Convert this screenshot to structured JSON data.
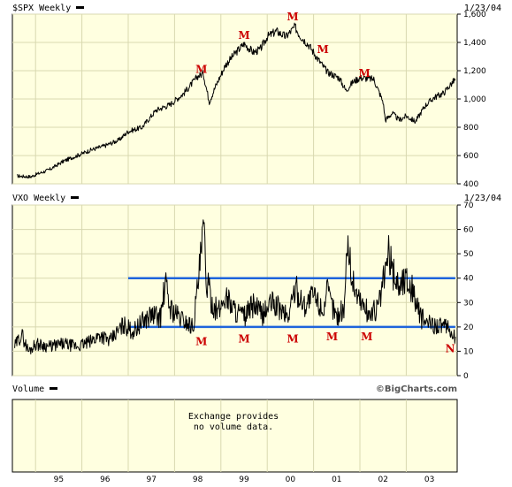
{
  "chart_data": [
    {
      "type": "line",
      "panel": "spx",
      "title": "$SPX Weekly",
      "date": "1/23/04",
      "ylim": [
        400,
        1600
      ],
      "yticks": [
        400,
        600,
        800,
        1000,
        1200,
        1400,
        1600
      ],
      "ytick_labels": [
        "400",
        "600",
        "800",
        "1,000",
        "1,200",
        "1,400",
        "1,600"
      ],
      "xlim": [
        1994.5,
        2004.1
      ],
      "grid": true,
      "series": [
        {
          "x": [
            1994.6,
            1994.9,
            1995.0,
            1995.3,
            1995.6,
            1995.9,
            1996.2,
            1996.5,
            1996.8,
            1997.0,
            1997.3,
            1997.6,
            1997.9,
            1998.2,
            1998.5,
            1998.62,
            1998.75,
            1998.9,
            1999.1,
            1999.3,
            1999.5,
            1999.7,
            1999.85,
            2000.0,
            2000.2,
            2000.4,
            2000.6,
            2000.7,
            2000.9,
            2001.1,
            2001.3,
            2001.55,
            2001.7,
            2001.85,
            2002.0,
            2002.3,
            2002.5,
            2002.55,
            2002.7,
            2002.85,
            2003.0,
            2003.2,
            2003.4,
            2003.6,
            2003.8,
            2004.06
          ],
          "y": [
            455,
            450,
            465,
            500,
            560,
            600,
            640,
            670,
            710,
            770,
            800,
            920,
            960,
            1040,
            1160,
            1180,
            980,
            1100,
            1240,
            1320,
            1390,
            1330,
            1350,
            1440,
            1480,
            1440,
            1510,
            1450,
            1380,
            1280,
            1190,
            1150,
            1060,
            1120,
            1150,
            1140,
            980,
            850,
            900,
            850,
            880,
            840,
            950,
            1010,
            1040,
            1140
          ]
        }
      ],
      "annotations": [
        {
          "text": "M",
          "x": 1998.58,
          "y": 1210
        },
        {
          "text": "M",
          "x": 1999.5,
          "y": 1450
        },
        {
          "text": "M",
          "x": 2000.55,
          "y": 1580
        },
        {
          "text": "M",
          "x": 2001.2,
          "y": 1350
        },
        {
          "text": "M",
          "x": 2002.1,
          "y": 1180
        }
      ]
    },
    {
      "type": "line",
      "panel": "vxo",
      "title": "VXO Weekly",
      "date": "1/23/04",
      "ylim": [
        0,
        70
      ],
      "yticks": [
        0,
        10,
        20,
        30,
        40,
        50,
        60,
        70
      ],
      "ytick_labels": [
        "0",
        "10",
        "20",
        "30",
        "40",
        "50",
        "60",
        "70"
      ],
      "xlim": [
        1994.5,
        2004.1
      ],
      "grid": true,
      "series": [
        {
          "x": [
            1994.55,
            1994.7,
            1994.85,
            1995.0,
            1995.3,
            1995.6,
            1995.9,
            1996.2,
            1996.4,
            1996.6,
            1996.9,
            1997.1,
            1997.3,
            1997.5,
            1997.7,
            1997.8,
            1997.9,
            1998.1,
            1998.4,
            1998.55,
            1998.63,
            1998.68,
            1998.8,
            1998.95,
            1999.1,
            1999.3,
            1999.5,
            1999.7,
            1999.9,
            2000.1,
            2000.3,
            2000.45,
            2000.6,
            2000.8,
            2001.0,
            2001.2,
            2001.3,
            2001.5,
            2001.68,
            2001.72,
            2001.85,
            2002.0,
            2002.2,
            2002.4,
            2002.55,
            2002.62,
            2002.72,
            2002.85,
            2003.0,
            2003.15,
            2003.3,
            2003.5,
            2003.7,
            2003.9,
            2004.06
          ],
          "y": [
            12,
            17,
            10,
            13,
            12,
            13,
            12,
            14,
            17,
            14,
            21,
            18,
            22,
            25,
            24,
            38,
            28,
            24,
            20,
            45,
            61,
            40,
            30,
            26,
            33,
            27,
            24,
            29,
            25,
            30,
            27,
            24,
            36,
            29,
            33,
            27,
            34,
            24,
            29,
            57,
            38,
            31,
            25,
            28,
            43,
            50,
            42,
            37,
            40,
            35,
            24,
            21,
            21,
            19,
            16
          ]
        }
      ],
      "reference_lines": [
        {
          "x0": 1997.0,
          "x1": 2004.06,
          "y": 40
        },
        {
          "x0": 1997.0,
          "x1": 2004.06,
          "y": 20
        }
      ],
      "annotations": [
        {
          "text": "M",
          "x": 1998.58,
          "y": 14
        },
        {
          "text": "M",
          "x": 1999.5,
          "y": 15
        },
        {
          "text": "M",
          "x": 2000.55,
          "y": 15
        },
        {
          "text": "M",
          "x": 2001.4,
          "y": 16
        },
        {
          "text": "M",
          "x": 2002.15,
          "y": 16
        },
        {
          "text": "N",
          "x": 2003.95,
          "y": 11
        }
      ]
    },
    {
      "type": "bar",
      "panel": "volume",
      "title": "Volume",
      "message_lines": [
        "Exchange provides",
        "no volume data."
      ],
      "xlim": [
        1994.5,
        2004.1
      ]
    }
  ],
  "xaxis": {
    "year_starts": [
      1995,
      1996,
      1997,
      1998,
      1999,
      2000,
      2001,
      2002,
      2003
    ],
    "labels": [
      "95",
      "96",
      "97",
      "98",
      "99",
      "00",
      "01",
      "02",
      "03"
    ]
  },
  "brand": "©BigCharts.com",
  "colors": {
    "plot_bg": "#ffffe0",
    "grid": "#d8d8b0",
    "line": "#000000",
    "reference": "#1e64dc",
    "marker": "#cc0000"
  }
}
